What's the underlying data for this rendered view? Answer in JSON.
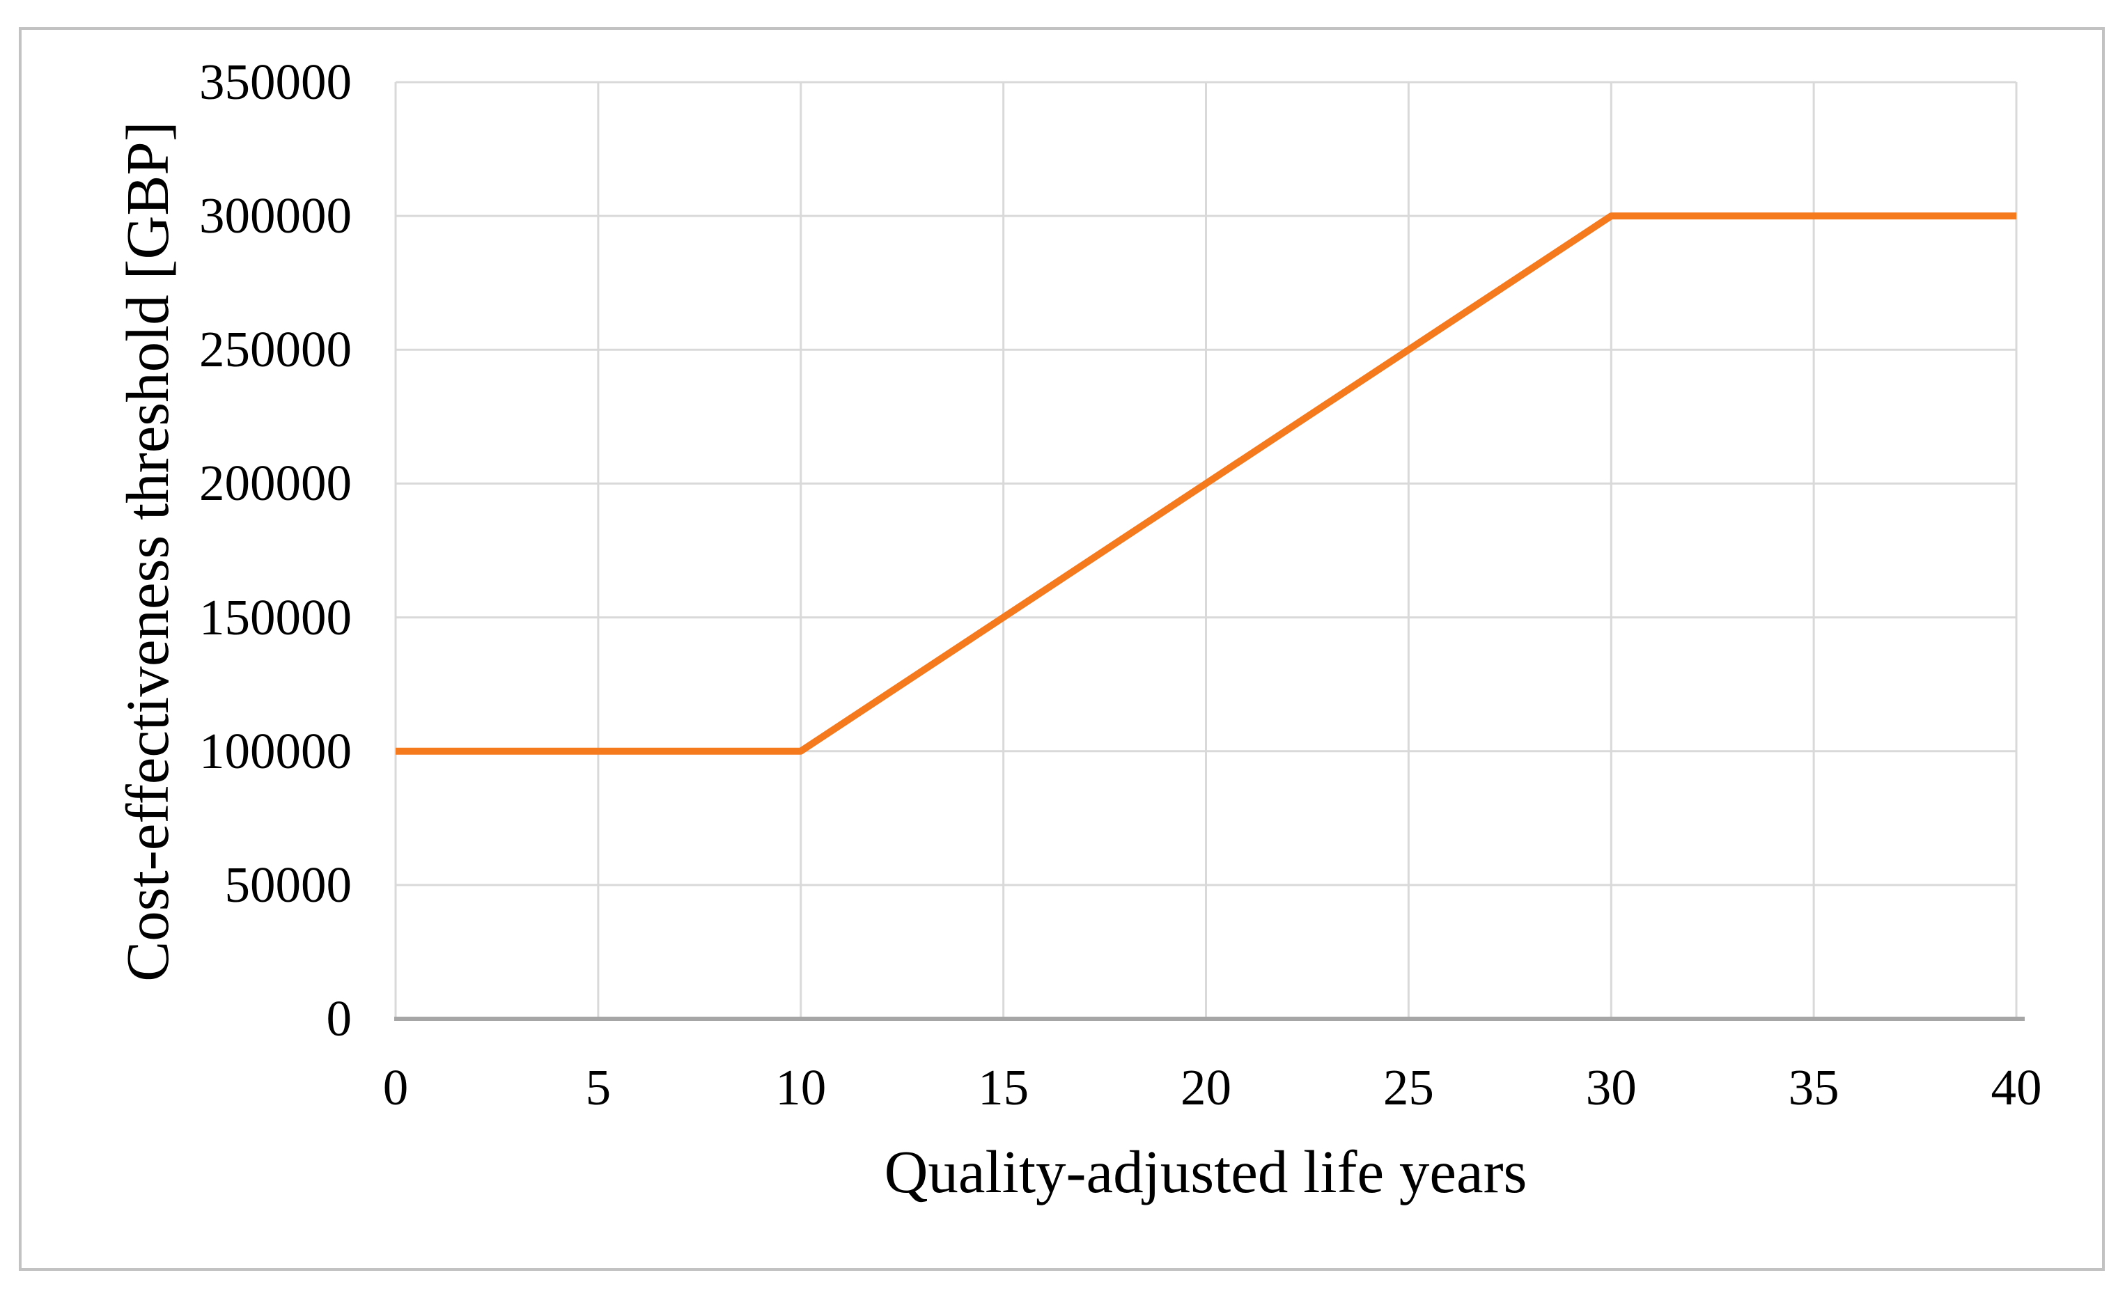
{
  "figure": {
    "background": "#ffffff",
    "border_color": "#c2c2c2"
  },
  "chart_data": {
    "type": "line",
    "title": "",
    "xlabel": "Quality-adjusted life years",
    "ylabel": "Cost-effectiveness threshold [GBP]",
    "xlim": [
      0,
      40
    ],
    "ylim": [
      0,
      350000
    ],
    "x_ticks": [
      0,
      5,
      10,
      15,
      20,
      25,
      30,
      35,
      40
    ],
    "y_ticks": [
      0,
      50000,
      100000,
      150000,
      200000,
      250000,
      300000,
      350000
    ],
    "grid": true,
    "legend": "none",
    "series": [
      {
        "name": "Cost-effectiveness threshold",
        "color": "#f57a1e",
        "points": [
          {
            "x": 0,
            "y": 100000
          },
          {
            "x": 10,
            "y": 100000
          },
          {
            "x": 30,
            "y": 300000
          },
          {
            "x": 40,
            "y": 300000
          }
        ]
      }
    ],
    "colors": {
      "gridline": "#d9d9d9",
      "axis_line": "#a6a6a6",
      "text": "#000000"
    }
  }
}
